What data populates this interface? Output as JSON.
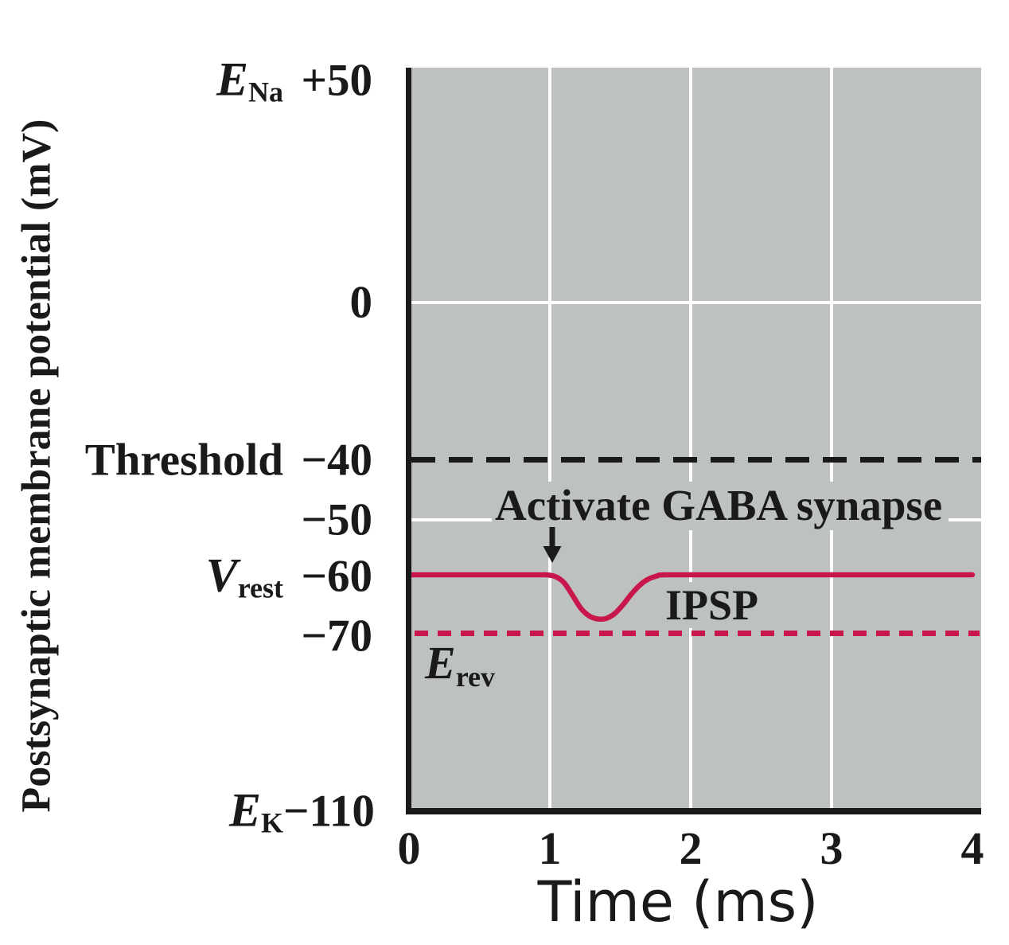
{
  "figure": {
    "y_axis_title": "Postsynaptic membrane potential (mV)",
    "x_axis_title": "Time (ms)",
    "y_rows": [
      {
        "name_base": "E",
        "name_sub": "Na",
        "value": "+50"
      },
      {
        "name_base": "",
        "name_sub": "",
        "value": "0"
      },
      {
        "name_base": "Threshold",
        "name_sub": "",
        "value": "−40"
      },
      {
        "name_base": "",
        "name_sub": "",
        "value": "−50"
      },
      {
        "name_base": "V",
        "name_sub": "rest",
        "value": "−60"
      },
      {
        "name_base": "",
        "name_sub": "",
        "value": "−70"
      },
      {
        "name_base": "E",
        "name_sub": "K",
        "value": "−110"
      }
    ],
    "x_ticks": [
      "0",
      "1",
      "2",
      "3",
      "4"
    ],
    "annotations": {
      "activate": "Activate GABA synapse",
      "ipsp": "IPSP",
      "erev_base": "E",
      "erev_sub": "rev"
    },
    "colors": {
      "trace_red": "#c8174a",
      "plot_background": "#bdc2c0",
      "axis_black": "#1a1a1a",
      "gridline_white": "#fdfdfd"
    }
  },
  "chart_data": {
    "type": "line",
    "title": "",
    "xlabel": "Time (ms)",
    "ylabel": "Postsynaptic membrane potential (mV)",
    "x_range_ms": [
      0,
      4
    ],
    "x_ticks": [
      0,
      1,
      2,
      3,
      4
    ],
    "y_tick_values_mV": [
      50,
      0,
      -40,
      -50,
      -60,
      -70,
      -110
    ],
    "y_tick_labels": [
      "+50",
      "0",
      "−40",
      "−50",
      "−60",
      "−70",
      "−110"
    ],
    "y_axis_note": "schematic non-linear spacing between ticks",
    "grid": {
      "vertical_at_ms": [
        1,
        2,
        3
      ],
      "horizontal_at_mV": [
        0,
        -50
      ]
    },
    "named_levels": [
      {
        "label": "E_Na",
        "value_mV": 50
      },
      {
        "label": "Threshold",
        "value_mV": -40
      },
      {
        "label": "V_rest",
        "value_mV": -60
      },
      {
        "label": "E_rev",
        "value_mV": -70
      },
      {
        "label": "E_K",
        "value_mV": -110
      }
    ],
    "reference_lines": [
      {
        "label": "Threshold",
        "value_mV": -40,
        "style": "dashed",
        "color": "#1a1a1a"
      },
      {
        "label": "E_rev",
        "value_mV": -70,
        "style": "dashed",
        "color": "#c8174a"
      }
    ],
    "event": {
      "label": "Activate GABA synapse",
      "time_ms": 1
    },
    "series": [
      {
        "name": "IPSP membrane potential",
        "color": "#c8174a",
        "points": [
          [
            0,
            -60
          ],
          [
            0.5,
            -60
          ],
          [
            0.9,
            -60
          ],
          [
            0.97,
            -60
          ],
          [
            1.04,
            -60.3
          ],
          [
            1.1,
            -61.3
          ],
          [
            1.16,
            -63.4
          ],
          [
            1.22,
            -65.6
          ],
          [
            1.28,
            -66.9
          ],
          [
            1.34,
            -67.4
          ],
          [
            1.4,
            -67.3
          ],
          [
            1.46,
            -66.5
          ],
          [
            1.52,
            -65.0
          ],
          [
            1.58,
            -63.2
          ],
          [
            1.64,
            -61.7
          ],
          [
            1.7,
            -60.7
          ],
          [
            1.76,
            -60.2
          ],
          [
            1.82,
            -60
          ],
          [
            2.2,
            -60
          ],
          [
            3.0,
            -60
          ],
          [
            4.0,
            -60
          ]
        ]
      }
    ]
  }
}
